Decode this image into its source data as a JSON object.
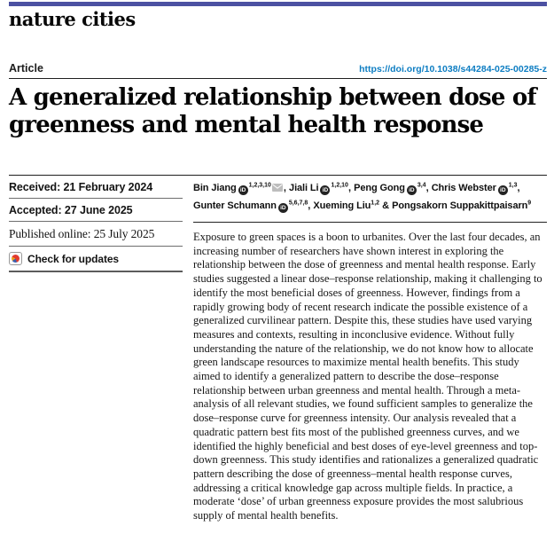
{
  "masthead": {
    "journal": "nature cities"
  },
  "header": {
    "article_type": "Article",
    "doi": "https://doi.org/10.1038/s44284-025-00285-z"
  },
  "article": {
    "title": "A generalized relationship between dose of greenness and mental health response"
  },
  "timeline": {
    "items": [
      {
        "text": "Received: 21 February 2024"
      },
      {
        "text": "Accepted: 27 June 2025"
      },
      {
        "text": "Published online: 25 July 2025"
      }
    ],
    "check_updates_label": "Check for updates"
  },
  "authors": [
    {
      "name": "Bin Jiang",
      "orcid": true,
      "sup": "1,2,3,10",
      "envelope": true,
      "sep": ", ",
      "break_after": false
    },
    {
      "name": "Jiali Li",
      "orcid": true,
      "sup": "1,2,10",
      "envelope": false,
      "sep": ", ",
      "break_after": false
    },
    {
      "name": "Peng Gong",
      "orcid": true,
      "sup": "3,4",
      "envelope": false,
      "sep": ", ",
      "break_after": false
    },
    {
      "name": "Chris Webster",
      "orcid": true,
      "sup": "1,3",
      "envelope": false,
      "sep": ", ",
      "break_after": true
    },
    {
      "name": "Gunter Schumann",
      "orcid": true,
      "sup": "5,6,7,8",
      "envelope": false,
      "sep": ", ",
      "break_after": false
    },
    {
      "name": "Xueming Liu",
      "orcid": false,
      "sup": "1,2",
      "envelope": false,
      "sep": " & ",
      "break_after": false
    },
    {
      "name": "Pongsakorn Suppakittpaisarn",
      "orcid": false,
      "sup": "9",
      "envelope": false,
      "sep": "",
      "break_after": false
    }
  ],
  "icons": {
    "orcid_text": "iD",
    "orcid": "orcid-id-circle",
    "email": "envelope",
    "crossmark": "crossmark-check-for-updates"
  },
  "colors": {
    "topbar": "#4c51a2",
    "doi_link": "#0d7dc2",
    "orcid_bg": "#232323",
    "crossmark_red": "#e23a2e",
    "crossmark_blue": "#3a5fae",
    "crossmark_yellow": "#f0a21f"
  },
  "abstract": "Exposure to green spaces is a boon to urbanites. Over the last four decades, an increasing number of researchers have shown interest in exploring the relationship between the dose of greenness and mental health response. Early studies suggested a linear dose–response relationship, making it challenging to identify the most beneficial doses of greenness. However, findings from a rapidly growing body of recent research indicate the possible existence of a generalized curvilinear pattern. Despite this, these studies have used varying measures and contexts, resulting in inconclusive evidence. Without fully understanding the nature of the relationship, we do not know how to allocate green landscape resources to maximize mental health benefits. This study aimed to identify a generalized pattern to describe the dose–response relationship between urban greenness and mental health. Through a meta-analysis of all relevant studies, we found sufficient samples to generalize the dose–response curve for greenness intensity. Our analysis revealed that a quadratic pattern best fits most of the published greenness curves, and we identified the highly beneficial and best doses of eye-level greenness and top-down greenness. This study identifies and rationalizes a generalized quadratic pattern describing the dose of greenness–mental health response curves, addressing a critical knowledge gap across multiple fields. In practice, a moderate ‘dose’ of urban greenness exposure provides the most salubrious supply of mental health benefits."
}
